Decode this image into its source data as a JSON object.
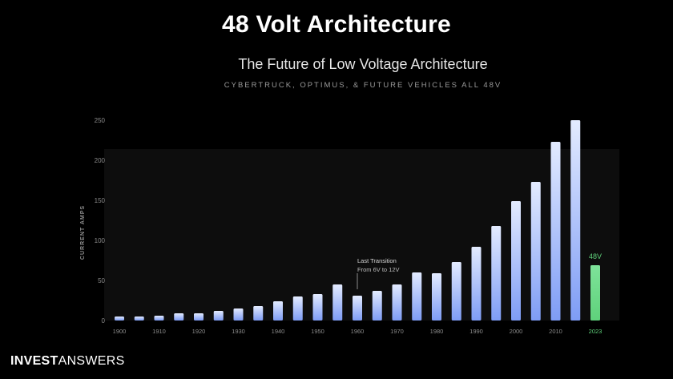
{
  "banner": {
    "title": "48 Volt Architecture"
  },
  "logo": {
    "part1": "INVEST",
    "part2": "ANSWERS"
  },
  "chart_data": {
    "type": "bar",
    "title": "The Future of Low Voltage Architecture",
    "subtitle": "CYBERTRUCK, OPTIMUS, & FUTURE VEHICLES ALL 48V",
    "xlabel": "",
    "ylabel": "CURRENT AMPS",
    "ylim": [
      0,
      250
    ],
    "yticks": [
      0,
      50,
      100,
      150,
      200,
      250
    ],
    "grid": false,
    "categories": [
      1900,
      1905,
      1910,
      1915,
      1920,
      1925,
      1930,
      1935,
      1940,
      1945,
      1950,
      1955,
      1960,
      1965,
      1970,
      1975,
      1980,
      1985,
      1990,
      1995,
      2000,
      2005,
      2010,
      2015,
      2023
    ],
    "values": [
      5,
      5,
      6,
      9,
      9,
      12,
      15,
      18,
      24,
      30,
      33,
      45,
      31,
      37,
      45,
      60,
      59,
      73,
      92,
      118,
      149,
      173,
      223,
      250,
      69
    ],
    "xtick_labels": [
      "1900",
      "1910",
      "1920",
      "1930",
      "1940",
      "1950",
      "1960",
      "1970",
      "1980",
      "1990",
      "2000",
      "2010",
      "2023"
    ],
    "xtick_categories": [
      1900,
      1910,
      1920,
      1930,
      1940,
      1950,
      1960,
      1970,
      1980,
      1990,
      2000,
      2010,
      2023
    ],
    "highlight": {
      "category": 2023,
      "label": "48V",
      "color": "#5fd17b"
    },
    "bar_color_top": "#e3ebff",
    "bar_color_bottom": "#7e9cf5",
    "annotation": {
      "category": 1960,
      "line1": "Last Transition",
      "line2": "From 6V to 12V"
    }
  }
}
